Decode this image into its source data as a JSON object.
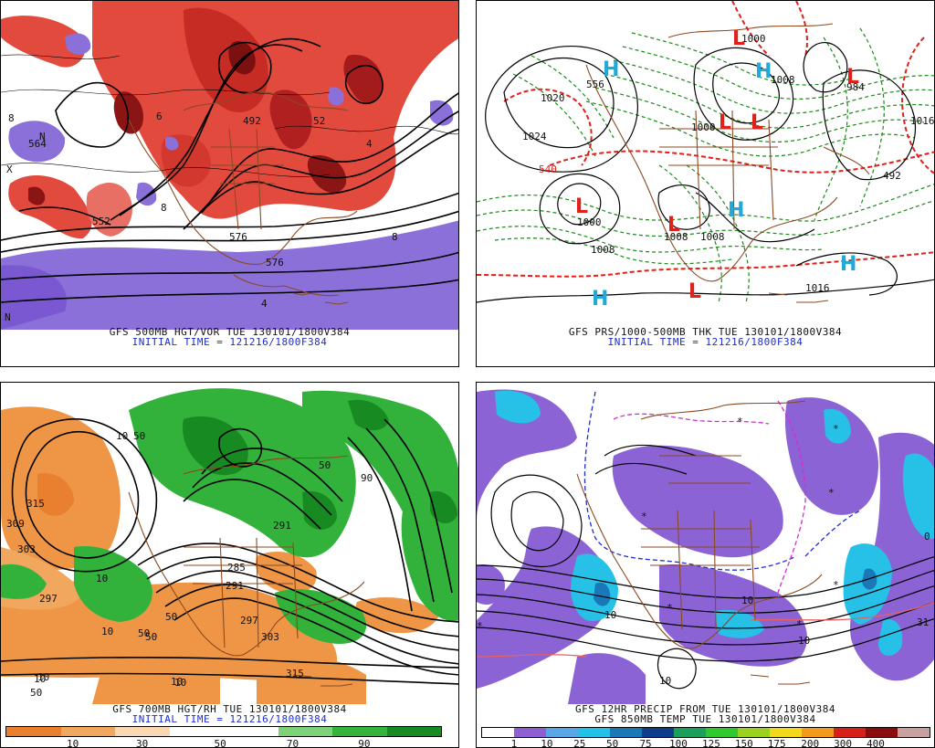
{
  "panels": {
    "p1": {
      "caption1": "GFS 500MB HGT/VOR TUE 130101/1800V384",
      "caption2": "INITIAL TIME = 121216/1800F384",
      "contour_labels": [
        "564",
        "576",
        "492",
        "576",
        "8",
        "4",
        "8",
        "N",
        "X",
        "N",
        "6",
        "552",
        "52",
        "4",
        "8"
      ]
    },
    "p2": {
      "caption1": "GFS PRS/1000-500MB THK TUE 130101/1800V384",
      "caption2": "INITIAL TIME = 121216/1800F384",
      "contour_labels": [
        "1020",
        "1024",
        "1000",
        "1000",
        "1008",
        "1008",
        "1008",
        "1008",
        "1016",
        "540",
        "556",
        "984",
        "1000",
        "492",
        "1016"
      ],
      "pressure_centers": [
        {
          "type": "L",
          "color": "#e0201a"
        },
        {
          "type": "L",
          "color": "#e0201a"
        },
        {
          "type": "L",
          "color": "#e0201a"
        },
        {
          "type": "L",
          "color": "#e0201a"
        },
        {
          "type": "L",
          "color": "#e0201a"
        },
        {
          "type": "L",
          "color": "#e0201a"
        },
        {
          "type": "H",
          "color": "#22a9d9"
        },
        {
          "type": "H",
          "color": "#22a9d9"
        },
        {
          "type": "H",
          "color": "#22a9d9"
        },
        {
          "type": "H",
          "color": "#22a9d9"
        },
        {
          "type": "H",
          "color": "#22a9d9"
        }
      ]
    },
    "p3": {
      "caption1": "GFS 700MB HGT/RH TUE 130101/1800V384",
      "caption2": "INITIAL TIME = 121216/1800F384",
      "contour_labels": [
        "315",
        "309",
        "303",
        "297",
        "50",
        "50",
        "10",
        "10",
        "50",
        "10",
        "315",
        "285",
        "291",
        "297",
        "303",
        "291",
        "10",
        "50",
        "10",
        "50",
        "90",
        "50",
        "10",
        "10"
      ],
      "colorbar": {
        "colors": [
          "#e98030",
          "#f2a75e",
          "#fbd7b3",
          "#ffffff",
          "#ffffff",
          "#7ed27a",
          "#34b43b",
          "#178a22"
        ],
        "labels": [
          "10",
          "30",
          "50",
          "70",
          "90"
        ]
      }
    },
    "p4": {
      "caption1": "GFS 12HR PRECIP FROM TUE 130101/1800V384",
      "caption2": "GFS 850MB TEMP TUE 130101/1800V384",
      "contour_labels": [
        "10",
        "10",
        "10",
        "10",
        "31",
        "0",
        "*",
        "*",
        "*",
        "*",
        "*",
        "*",
        "*",
        "*"
      ],
      "colorbar": {
        "colors": [
          "#ffffff",
          "#8d5fd3",
          "#58a8e8",
          "#22c1e8",
          "#1a78b8",
          "#0e3d8e",
          "#1aa05a",
          "#2ec92f",
          "#9ad11f",
          "#f2d81b",
          "#f29a1b",
          "#d8201a",
          "#8a0c0c",
          "#c8a0a0"
        ],
        "labels": [
          "1",
          "10",
          "25",
          "50",
          "75",
          "100",
          "125",
          "150",
          "175",
          "200",
          "300",
          "400"
        ]
      }
    }
  },
  "colors": {
    "coast": "#8a4a22",
    "vort_red": "#e34a3e",
    "vort_dark": "#8b1414",
    "vort_purple": "#8a70d8",
    "rh_orange": "#ef9646",
    "rh_green": "#32b13b",
    "precip_purple": "#8c63d4",
    "precip_cyan": "#27c0e6",
    "thk_green": "#1a8a1a",
    "thk_red": "#e0201a"
  }
}
